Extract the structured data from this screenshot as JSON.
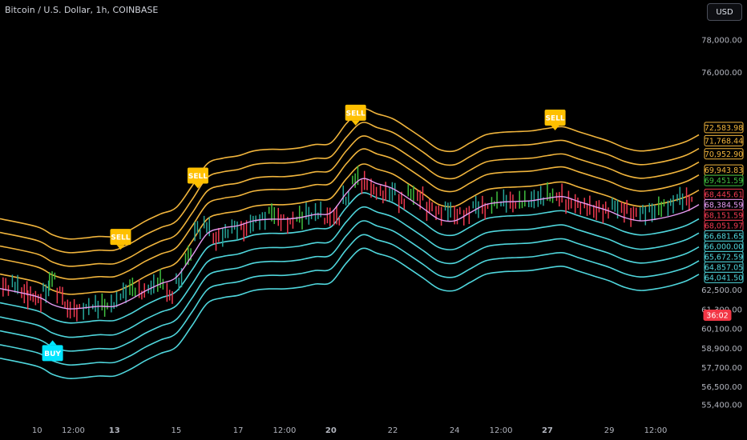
{
  "header": {
    "symbol_title": "Bitcoin / U.S. Dollar, 1h, COINBASE",
    "currency_label": "USD"
  },
  "colors": {
    "background": "#000000",
    "upper_band": "#f0b43c",
    "lower_band": "#4fd6dc",
    "basis": "#e69bf2",
    "candle_up": "#26a69a",
    "candle_green": "#3fbf3f",
    "candle_down": "#ef3950",
    "sell_signal": "#ffc000",
    "buy_signal": "#00e5ff",
    "countdown_bg": "#f23645"
  },
  "chart_data": {
    "type": "line",
    "title": "Bitcoin / U.S. Dollar, 1h, COINBASE",
    "xlabel": "",
    "ylabel": "",
    "ylim": [
      54600,
      79000
    ],
    "grid": false,
    "x_ticks": [
      "10",
      "12:00",
      "13",
      "15",
      "17",
      "12:00",
      "20",
      "22",
      "24",
      "12:00",
      "27",
      "29",
      "12:00"
    ],
    "x_tick_positions": [
      0.5,
      1.67,
      3.0,
      5.0,
      7.0,
      8.5,
      10.0,
      12.0,
      14.0,
      15.5,
      17.0,
      19.0,
      20.5
    ],
    "x_range": [
      -0.7,
      21.9
    ],
    "y_ticks": [
      78000,
      76000,
      62500,
      61300,
      60100,
      58900,
      57700,
      56500,
      55400
    ],
    "y_tick_labels": [
      "78,000.00",
      "76,000.00",
      "62,500.00",
      "61,300.00",
      "60,100.00",
      "58,900.00",
      "57,700.00",
      "56,500.00",
      "55,400.00"
    ],
    "x": [
      -0.7,
      0.5,
      1.0,
      1.5,
      2.0,
      2.5,
      3.0,
      3.5,
      4.0,
      4.5,
      5.0,
      5.5,
      6.0,
      6.5,
      7.0,
      7.5,
      8.0,
      8.5,
      9.0,
      9.5,
      10.0,
      10.5,
      11.0,
      11.5,
      12.0,
      12.5,
      13.0,
      13.5,
      14.0,
      14.5,
      15.0,
      15.5,
      16.0,
      16.5,
      17.0,
      17.5,
      18.0,
      18.5,
      19.0,
      19.5,
      20.0,
      20.5,
      21.0,
      21.5,
      21.9
    ],
    "band_offsets": [
      4.33,
      3.48,
      2.64,
      1.84,
      0.9,
      -0.88,
      -1.76,
      -2.62,
      -3.48,
      -4.32
    ],
    "band_colors": [
      "#f0b43c",
      "#f0b43c",
      "#f0b43c",
      "#f0b43c",
      "#f0b43c",
      "#4fd6dc",
      "#4fd6dc",
      "#4fd6dc",
      "#4fd6dc",
      "#4fd6dc"
    ],
    "series": [
      {
        "values": [
          62600,
          62100,
          61600,
          61350,
          61400,
          61500,
          61500,
          61900,
          62450,
          62900,
          63300,
          64600,
          66000,
          66350,
          66500,
          66800,
          66900,
          66900,
          67000,
          67200,
          67300,
          68500,
          69400,
          69100,
          68800,
          68200,
          67550,
          66900,
          66800,
          67300,
          67800,
          67950,
          68000,
          68050,
          68200,
          68300,
          68000,
          67700,
          67400,
          67000,
          66800,
          66900,
          67100,
          67400,
          67800
        ],
        "color": "#e69bf2"
      }
    ],
    "candles": [
      {
        "x": -0.6,
        "y": 62700
      },
      {
        "x": -0.3,
        "y": 62850
      },
      {
        "x": 0.0,
        "y": 62400
      },
      {
        "x": 0.2,
        "y": 62100
      },
      {
        "x": 0.45,
        "y": 61900
      },
      {
        "x": 0.7,
        "y": 62500
      },
      {
        "x": 0.9,
        "y": 63200
      },
      {
        "x": 1.15,
        "y": 62300
      },
      {
        "x": 1.4,
        "y": 61400
      },
      {
        "x": 1.7,
        "y": 61300
      },
      {
        "x": 2.0,
        "y": 61400
      },
      {
        "x": 2.3,
        "y": 61500
      },
      {
        "x": 2.6,
        "y": 61550
      },
      {
        "x": 2.9,
        "y": 61700
      },
      {
        "x": 3.2,
        "y": 62300
      },
      {
        "x": 3.5,
        "y": 62600
      },
      {
        "x": 3.8,
        "y": 62400
      },
      {
        "x": 4.1,
        "y": 62700
      },
      {
        "x": 4.4,
        "y": 63000
      },
      {
        "x": 4.7,
        "y": 62200
      },
      {
        "x": 5.0,
        "y": 63100
      },
      {
        "x": 5.3,
        "y": 64600
      },
      {
        "x": 5.6,
        "y": 66200
      },
      {
        "x": 5.9,
        "y": 66500
      },
      {
        "x": 6.2,
        "y": 65700
      },
      {
        "x": 6.5,
        "y": 66000
      },
      {
        "x": 6.8,
        "y": 66400
      },
      {
        "x": 7.1,
        "y": 66300
      },
      {
        "x": 7.4,
        "y": 66700
      },
      {
        "x": 7.7,
        "y": 66900
      },
      {
        "x": 8.0,
        "y": 67300
      },
      {
        "x": 8.3,
        "y": 66900
      },
      {
        "x": 8.6,
        "y": 66700
      },
      {
        "x": 8.9,
        "y": 67000
      },
      {
        "x": 9.2,
        "y": 67200
      },
      {
        "x": 9.5,
        "y": 67300
      },
      {
        "x": 9.8,
        "y": 67000
      },
      {
        "x": 10.1,
        "y": 67000
      },
      {
        "x": 10.4,
        "y": 68200
      },
      {
        "x": 10.7,
        "y": 69400
      },
      {
        "x": 11.0,
        "y": 69100
      },
      {
        "x": 11.3,
        "y": 68700
      },
      {
        "x": 11.6,
        "y": 68500
      },
      {
        "x": 11.9,
        "y": 68600
      },
      {
        "x": 12.2,
        "y": 68000
      },
      {
        "x": 12.5,
        "y": 68500
      },
      {
        "x": 12.8,
        "y": 68300
      },
      {
        "x": 13.1,
        "y": 67600
      },
      {
        "x": 13.4,
        "y": 67300
      },
      {
        "x": 13.7,
        "y": 67500
      },
      {
        "x": 14.0,
        "y": 67200
      },
      {
        "x": 14.3,
        "y": 67200
      },
      {
        "x": 14.6,
        "y": 67700
      },
      {
        "x": 14.9,
        "y": 67600
      },
      {
        "x": 15.2,
        "y": 67900
      },
      {
        "x": 15.5,
        "y": 68000
      },
      {
        "x": 15.8,
        "y": 67900
      },
      {
        "x": 16.1,
        "y": 68000
      },
      {
        "x": 16.4,
        "y": 68050
      },
      {
        "x": 16.7,
        "y": 68200
      },
      {
        "x": 17.0,
        "y": 68400
      },
      {
        "x": 17.3,
        "y": 68300
      },
      {
        "x": 17.6,
        "y": 67900
      },
      {
        "x": 17.9,
        "y": 67800
      },
      {
        "x": 18.2,
        "y": 67700
      },
      {
        "x": 18.5,
        "y": 67500
      },
      {
        "x": 18.8,
        "y": 67400
      },
      {
        "x": 19.1,
        "y": 67700
      },
      {
        "x": 19.4,
        "y": 67500
      },
      {
        "x": 19.7,
        "y": 67200
      },
      {
        "x": 20.0,
        "y": 67300
      },
      {
        "x": 20.3,
        "y": 67400
      },
      {
        "x": 20.6,
        "y": 67700
      },
      {
        "x": 20.9,
        "y": 67800
      },
      {
        "x": 21.2,
        "y": 68200
      },
      {
        "x": 21.5,
        "y": 68100
      }
    ],
    "signals": [
      {
        "label": "SELL",
        "x": 3.2,
        "y": 65800,
        "type": "sell"
      },
      {
        "label": "SELL",
        "x": 5.7,
        "y": 69600,
        "type": "sell"
      },
      {
        "label": "SELL",
        "x": 10.8,
        "y": 73500,
        "type": "sell"
      },
      {
        "label": "SELL",
        "x": 17.25,
        "y": 73200,
        "type": "sell"
      },
      {
        "label": "BUY",
        "x": 1.0,
        "y": 58600,
        "type": "buy"
      }
    ],
    "price_tags": [
      {
        "label": "72,583.98",
        "y": 72583.98,
        "color": "#f0b43c",
        "style": "outline"
      },
      {
        "label": "71,768.44",
        "y": 71768.44,
        "color": "#f0b43c",
        "style": "outline"
      },
      {
        "label": "70,952.90",
        "y": 70952.9,
        "color": "#f0b43c",
        "style": "outline"
      },
      {
        "label": "69,943.83",
        "y": 69943.83,
        "color": "#f0b43c",
        "style": "outline"
      },
      {
        "label": "69,451.59",
        "y": 69451.59,
        "color": "#3fbf3f",
        "style": "outline"
      },
      {
        "label": "68,445.61",
        "y": 68445.61,
        "color": "#ef3950",
        "style": "outline"
      },
      {
        "label": "68,384.59",
        "y": 68384.59,
        "color": "#e69bf2",
        "style": "outline"
      },
      {
        "label": "68,151.59",
        "y": 68151.59,
        "color": "#ef3950",
        "style": "outline"
      },
      {
        "label": "68,051.97",
        "y": 68051.97,
        "color": "#ef3950",
        "style": "outline"
      },
      {
        "label": "66,681.65",
        "y": 66681.65,
        "color": "#4fd6dc",
        "style": "outline"
      },
      {
        "label": "66,000.00",
        "y": 66000.0,
        "color": "#4fd6dc",
        "style": "outline"
      },
      {
        "label": "65,672.59",
        "y": 65672.59,
        "color": "#4fd6dc",
        "style": "outline"
      },
      {
        "label": "64,857.05",
        "y": 64857.05,
        "color": "#4fd6dc",
        "style": "outline"
      },
      {
        "label": "64,041.50",
        "y": 64041.5,
        "color": "#4fd6dc",
        "style": "outline"
      },
      {
        "label": "36:02",
        "y": 60950,
        "color": "#f23645",
        "style": "filled"
      }
    ]
  }
}
